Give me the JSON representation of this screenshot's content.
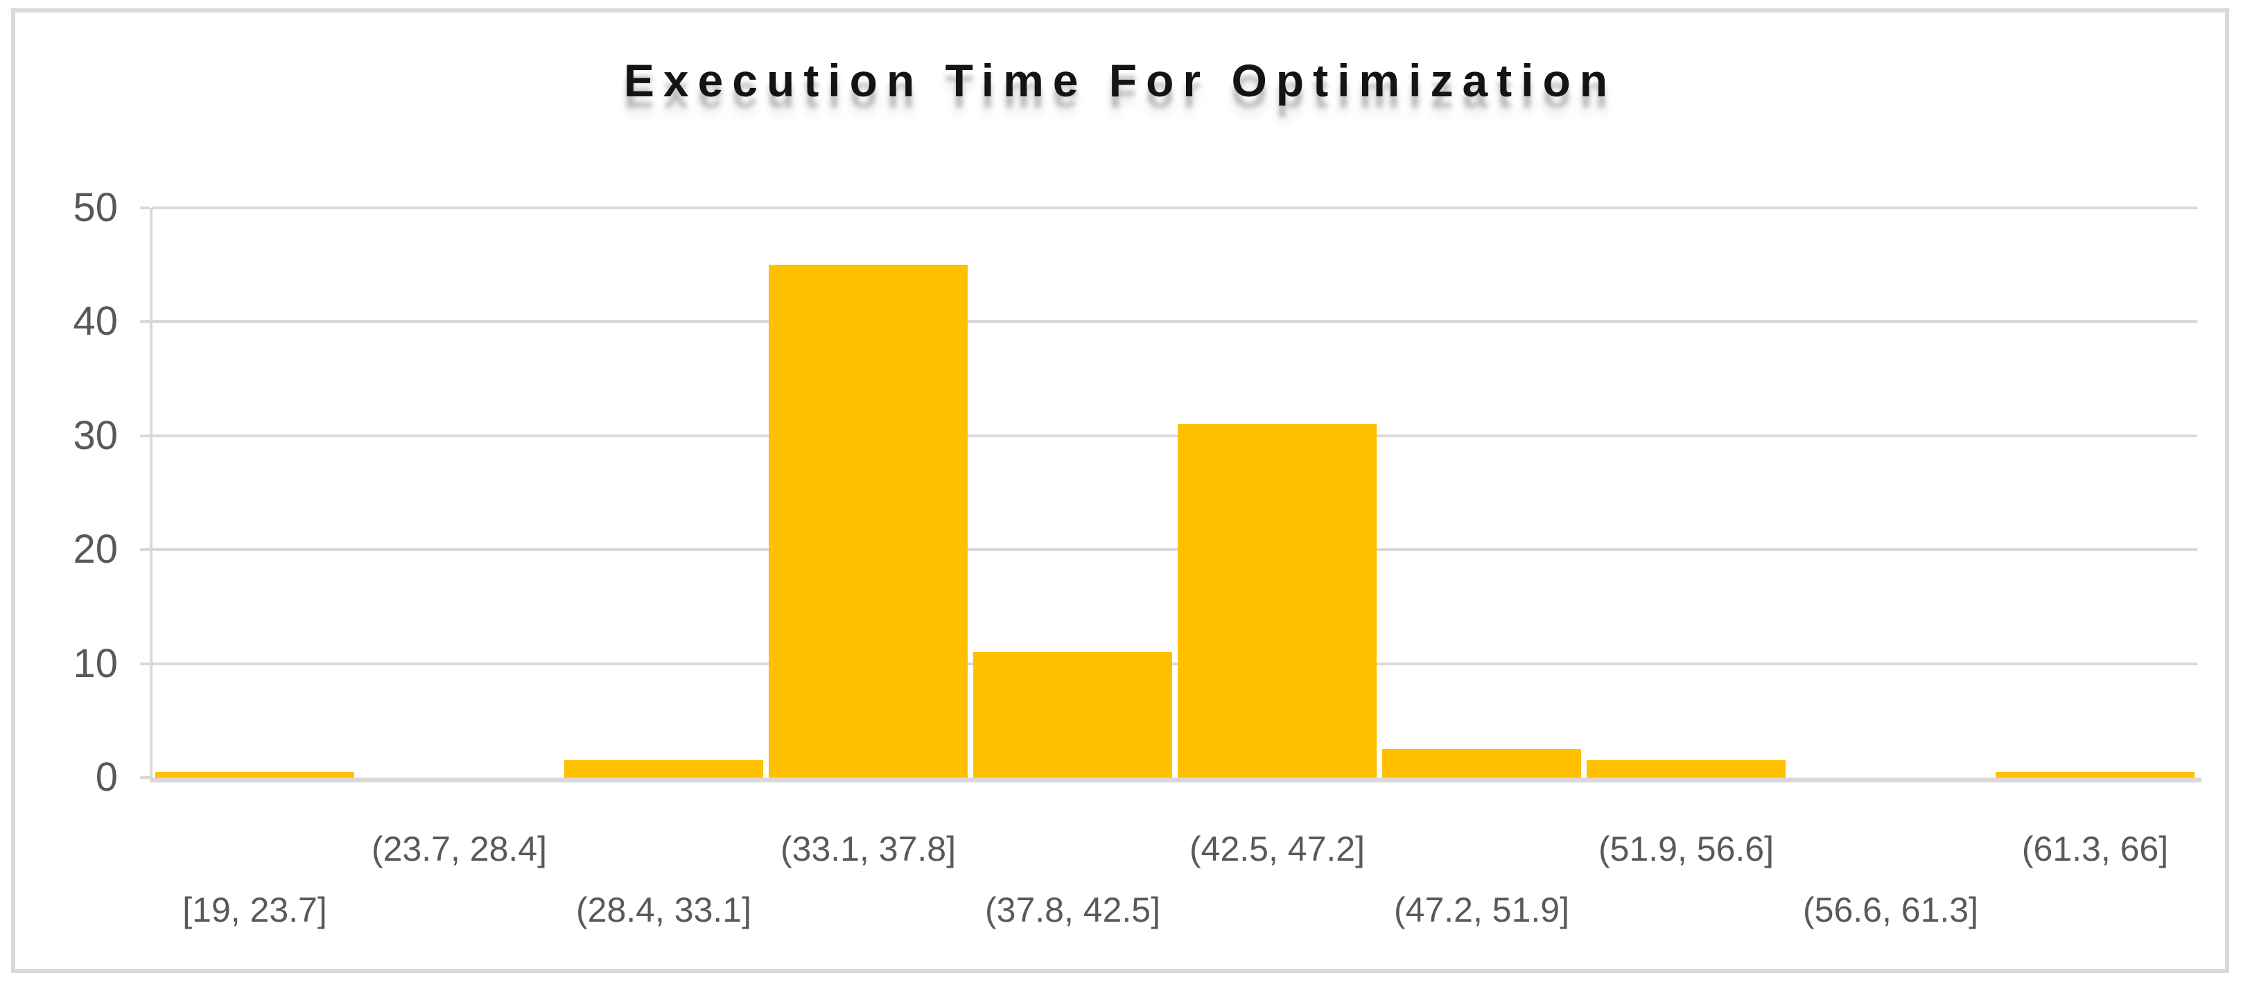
{
  "chart_data": {
    "type": "bar",
    "chart_style": "histogram",
    "title": "Execution Time For Optimization",
    "categories": [
      "[19, 23.7]",
      "(23.7, 28.4]",
      "(28.4, 33.1]",
      "(33.1, 37.8]",
      "(37.8, 42.5]",
      "(42.5, 47.2]",
      "(47.2, 51.9]",
      "(51.9, 56.6]",
      "(56.6, 61.3]",
      "(61.3, 66]"
    ],
    "values": [
      0.5,
      0,
      1.5,
      45,
      11,
      31,
      2.5,
      1.5,
      0,
      0.5
    ],
    "xlabel": "",
    "ylabel": "",
    "ylim": [
      0,
      50
    ],
    "yticks": [
      0,
      10,
      20,
      30,
      40,
      50
    ],
    "grid": true,
    "legend_position": "none",
    "x_label_layout": "staggered-two-rows",
    "colors": {
      "bar": "#FFC000",
      "gridline": "#D9D9D9",
      "axis_line": "#D8D8D8",
      "tick_label": "#595959",
      "title": "#141414",
      "frame_border": "#D9D9D9",
      "background": "#FFFFFF"
    }
  }
}
